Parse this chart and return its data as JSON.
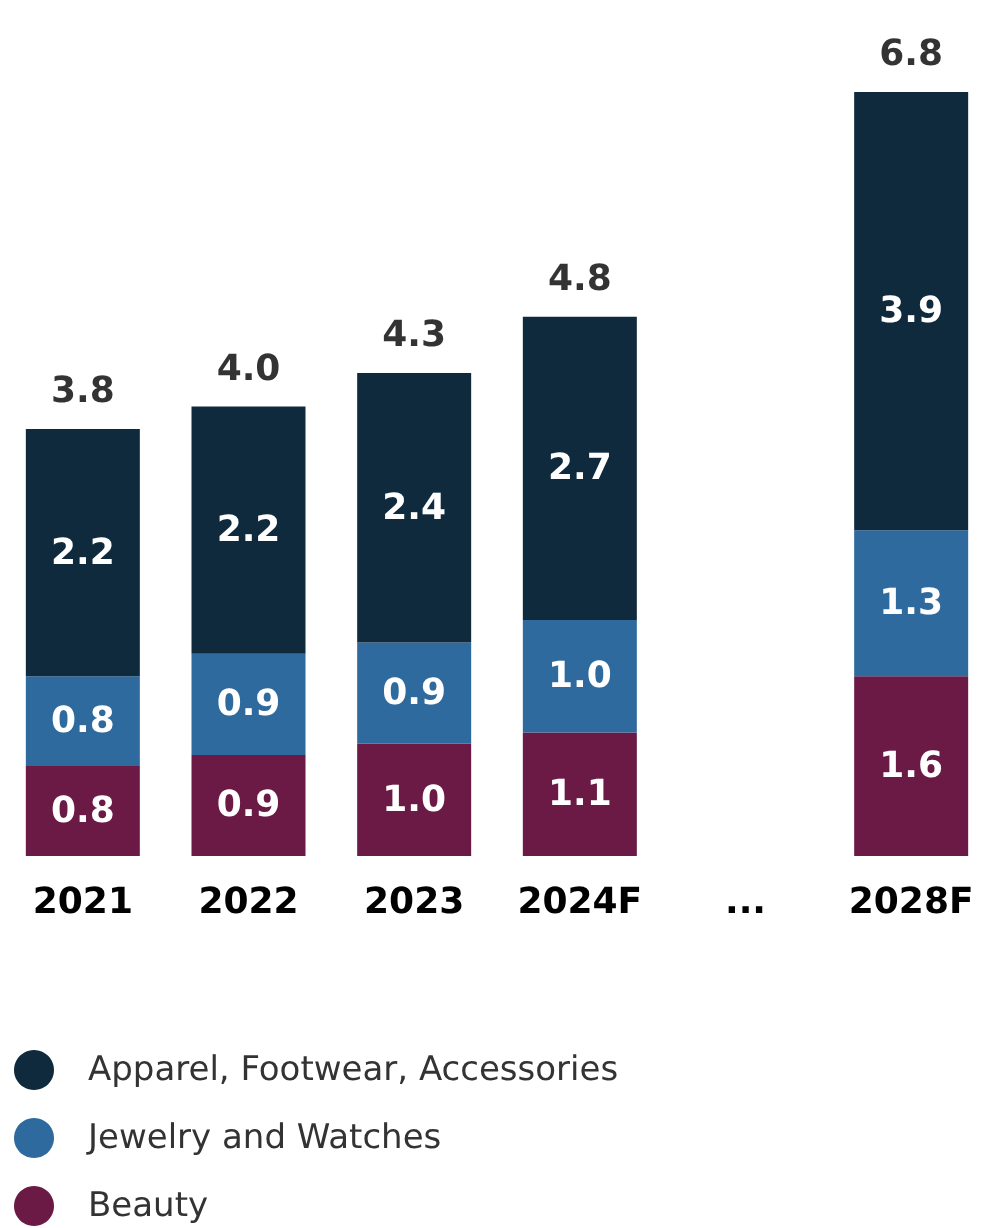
{
  "chart_data": {
    "type": "bar",
    "stacked": true,
    "categories": [
      "2021",
      "2022",
      "2023",
      "2024F",
      "...",
      "2028F"
    ],
    "series": [
      {
        "name": "Beauty",
        "color": "#6b1a45",
        "values": [
          0.8,
          0.9,
          1.0,
          1.1,
          null,
          1.6
        ],
        "value_labels": [
          "0.8",
          "0.9",
          "1.0",
          "1.1",
          null,
          "1.6"
        ]
      },
      {
        "name": "Jewelry and Watches",
        "color": "#2e6a9e",
        "values": [
          0.8,
          0.9,
          0.9,
          1.0,
          null,
          1.3
        ],
        "value_labels": [
          "0.8",
          "0.9",
          "0.9",
          "1.0",
          null,
          "1.3"
        ]
      },
      {
        "name": "Apparel, Footwear, Accessories",
        "color": "#0f2a3d",
        "values": [
          2.2,
          2.2,
          2.4,
          2.7,
          null,
          3.9
        ],
        "value_labels": [
          "2.2",
          "2.2",
          "2.4",
          "2.7",
          null,
          "3.9"
        ]
      }
    ],
    "totals": [
      "3.8",
      "4.0",
      "4.3",
      "4.8",
      null,
      "6.8"
    ],
    "legend": "bottom"
  }
}
